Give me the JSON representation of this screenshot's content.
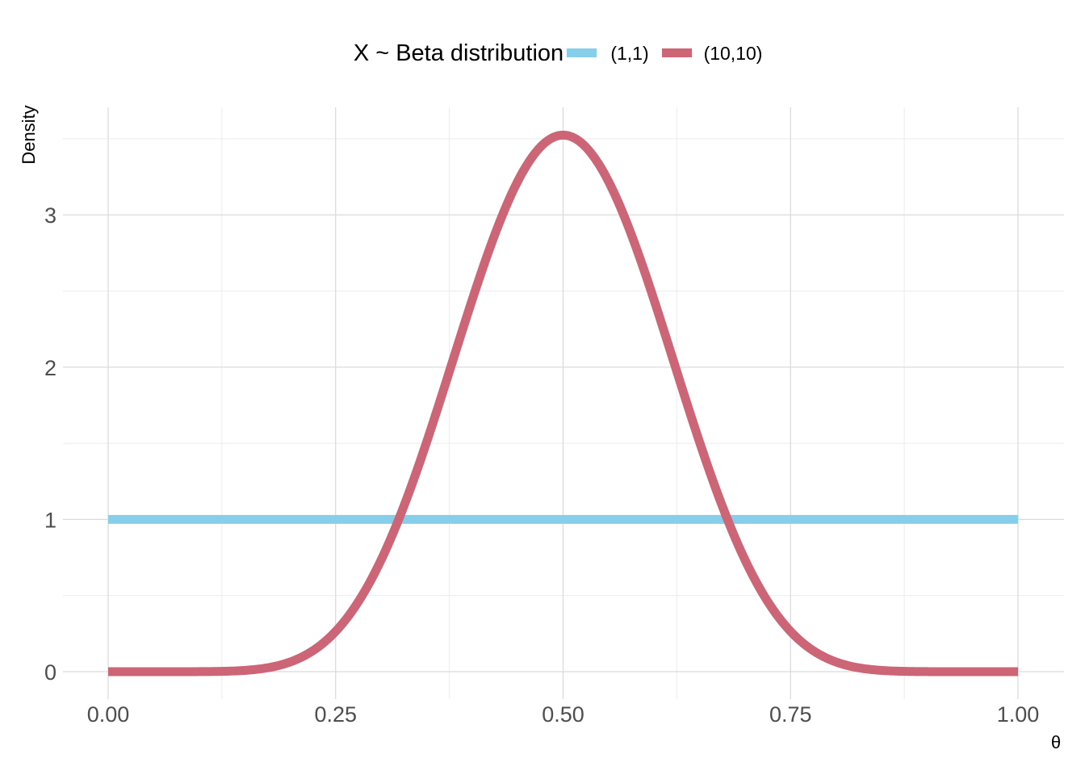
{
  "chart_data": {
    "type": "line",
    "legend": {
      "title": "X ~ Beta distribution",
      "position": "top"
    },
    "xlabel": "θ",
    "ylabel": "Density",
    "xlim": [
      0,
      1
    ],
    "ylim": [
      0,
      3.52
    ],
    "x_ticks": [
      0,
      0.25,
      0.5,
      0.75,
      1
    ],
    "x_tick_labels": [
      "0.00",
      "0.25",
      "0.50",
      "0.75",
      "1.00"
    ],
    "y_ticks": [
      0,
      1,
      2,
      3
    ],
    "y_tick_labels": [
      "0",
      "1",
      "2",
      "3"
    ],
    "grid": true,
    "series": [
      {
        "name": "(1,1)",
        "color": "#87CEEB",
        "alpha": 1,
        "beta": 1,
        "x": [
          0,
          0.05,
          0.1,
          0.15,
          0.2,
          0.25,
          0.3,
          0.35,
          0.4,
          0.45,
          0.5,
          0.55,
          0.6,
          0.65,
          0.7,
          0.75,
          0.8,
          0.85,
          0.9,
          0.95,
          1
        ],
        "y": [
          1,
          1,
          1,
          1,
          1,
          1,
          1,
          1,
          1,
          1,
          1,
          1,
          1,
          1,
          1,
          1,
          1,
          1,
          1,
          1,
          1
        ]
      },
      {
        "name": "(10,10)",
        "color": "#CC6677",
        "alpha": 10,
        "beta": 10,
        "x": [
          0,
          0.05,
          0.1,
          0.15,
          0.2,
          0.25,
          0.3,
          0.35,
          0.4,
          0.45,
          0.5,
          0.55,
          0.6,
          0.65,
          0.7,
          0.75,
          0.8,
          0.85,
          0.9,
          0.95,
          1
        ],
        "y": [
          0,
          0.0,
          0.0009,
          0.0162,
          0.103,
          0.364,
          0.855,
          1.53,
          2.27,
          2.95,
          3.52,
          2.95,
          2.27,
          1.53,
          0.855,
          0.364,
          0.103,
          0.0162,
          0.0009,
          0.0,
          0
        ]
      }
    ]
  }
}
